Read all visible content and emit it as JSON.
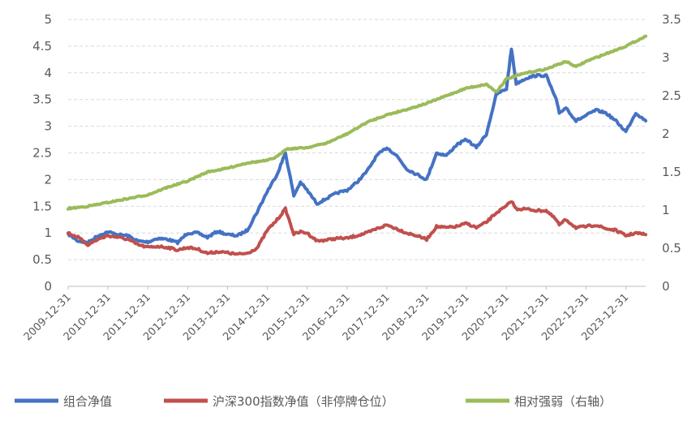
{
  "chart_data": {
    "type": "line",
    "x": [
      "2009-12-31",
      "2010-12-31",
      "2011-12-31",
      "2012-12-31",
      "2013-12-31",
      "2014-12-31",
      "2015-12-31",
      "2016-12-31",
      "2017-12-31",
      "2018-12-31",
      "2019-12-31",
      "2020-12-31",
      "2021-12-31",
      "2022-12-31",
      "2023-12-31"
    ],
    "xlim": [
      "2009-12-31",
      "2024-06-30"
    ],
    "ylim_left": [
      0,
      5
    ],
    "ylim_right": [
      0,
      3.5
    ],
    "yticks_left": [
      "0",
      "0.5",
      "1",
      "1.5",
      "2",
      "2.5",
      "3",
      "3.5",
      "4",
      "4.5",
      "5"
    ],
    "yticks_right": [
      "0",
      "0.5",
      "1",
      "1.5",
      "2",
      "2.5",
      "3",
      "3.5"
    ],
    "grid": "horizontal-dashed",
    "legend_position": "bottom",
    "series": [
      {
        "name": "组合净值",
        "axis": "left",
        "color": "#4472C4",
        "points": [
          [
            "2009-12-31",
            0.98
          ],
          [
            "2010-03-31",
            0.85
          ],
          [
            "2010-06-30",
            0.82
          ],
          [
            "2010-09-30",
            0.95
          ],
          [
            "2010-12-31",
            1.02
          ],
          [
            "2011-03-31",
            0.97
          ],
          [
            "2011-06-30",
            0.95
          ],
          [
            "2011-09-30",
            0.85
          ],
          [
            "2011-12-31",
            0.83
          ],
          [
            "2012-03-31",
            0.9
          ],
          [
            "2012-06-30",
            0.88
          ],
          [
            "2012-09-30",
            0.82
          ],
          [
            "2012-12-31",
            1.0
          ],
          [
            "2013-03-31",
            1.0
          ],
          [
            "2013-06-30",
            0.92
          ],
          [
            "2013-09-30",
            1.03
          ],
          [
            "2013-12-31",
            0.97
          ],
          [
            "2014-03-31",
            0.95
          ],
          [
            "2014-06-30",
            1.05
          ],
          [
            "2014-09-30",
            1.4
          ],
          [
            "2014-12-31",
            1.78
          ],
          [
            "2015-03-31",
            2.1
          ],
          [
            "2015-06-15",
            2.5
          ],
          [
            "2015-08-31",
            1.7
          ],
          [
            "2015-10-31",
            1.95
          ],
          [
            "2015-12-31",
            1.8
          ],
          [
            "2016-03-31",
            1.55
          ],
          [
            "2016-06-30",
            1.65
          ],
          [
            "2016-09-30",
            1.75
          ],
          [
            "2016-12-31",
            1.8
          ],
          [
            "2017-03-31",
            1.95
          ],
          [
            "2017-06-30",
            2.15
          ],
          [
            "2017-09-30",
            2.45
          ],
          [
            "2017-12-31",
            2.6
          ],
          [
            "2018-03-31",
            2.45
          ],
          [
            "2018-06-30",
            2.2
          ],
          [
            "2018-09-30",
            2.1
          ],
          [
            "2018-12-31",
            2.0
          ],
          [
            "2019-03-31",
            2.5
          ],
          [
            "2019-06-30",
            2.45
          ],
          [
            "2019-09-30",
            2.65
          ],
          [
            "2019-12-31",
            2.75
          ],
          [
            "2020-03-31",
            2.6
          ],
          [
            "2020-06-30",
            2.85
          ],
          [
            "2020-09-30",
            3.6
          ],
          [
            "2020-12-31",
            3.7
          ],
          [
            "2021-02-15",
            4.45
          ],
          [
            "2021-03-31",
            3.8
          ],
          [
            "2021-06-30",
            3.9
          ],
          [
            "2021-09-30",
            3.95
          ],
          [
            "2021-12-31",
            3.95
          ],
          [
            "2022-03-31",
            3.5
          ],
          [
            "2022-04-30",
            3.25
          ],
          [
            "2022-06-30",
            3.35
          ],
          [
            "2022-09-30",
            3.1
          ],
          [
            "2022-12-31",
            3.2
          ],
          [
            "2023-03-31",
            3.3
          ],
          [
            "2023-06-30",
            3.25
          ],
          [
            "2023-09-30",
            3.1
          ],
          [
            "2023-12-31",
            2.9
          ],
          [
            "2024-03-31",
            3.25
          ],
          [
            "2024-06-30",
            3.1
          ]
        ]
      },
      {
        "name": "沪深300指数净值（非停牌仓位）",
        "axis": "left",
        "color": "#C0504D",
        "points": [
          [
            "2009-12-31",
            1.0
          ],
          [
            "2010-03-31",
            0.92
          ],
          [
            "2010-06-30",
            0.78
          ],
          [
            "2010-09-30",
            0.88
          ],
          [
            "2010-12-31",
            0.95
          ],
          [
            "2011-03-31",
            0.92
          ],
          [
            "2011-06-30",
            0.88
          ],
          [
            "2011-09-30",
            0.78
          ],
          [
            "2011-12-31",
            0.73
          ],
          [
            "2012-03-31",
            0.75
          ],
          [
            "2012-06-30",
            0.73
          ],
          [
            "2012-09-30",
            0.68
          ],
          [
            "2012-12-31",
            0.73
          ],
          [
            "2013-03-31",
            0.7
          ],
          [
            "2013-06-30",
            0.62
          ],
          [
            "2013-09-30",
            0.65
          ],
          [
            "2013-12-31",
            0.63
          ],
          [
            "2014-03-31",
            0.6
          ],
          [
            "2014-06-30",
            0.62
          ],
          [
            "2014-09-30",
            0.72
          ],
          [
            "2014-12-31",
            1.05
          ],
          [
            "2015-03-31",
            1.25
          ],
          [
            "2015-06-15",
            1.45
          ],
          [
            "2015-08-31",
            0.98
          ],
          [
            "2015-10-31",
            1.02
          ],
          [
            "2015-12-31",
            1.0
          ],
          [
            "2016-03-31",
            0.85
          ],
          [
            "2016-06-30",
            0.87
          ],
          [
            "2016-09-30",
            0.9
          ],
          [
            "2016-12-31",
            0.9
          ],
          [
            "2017-03-31",
            0.95
          ],
          [
            "2017-06-30",
            1.0
          ],
          [
            "2017-09-30",
            1.08
          ],
          [
            "2017-12-31",
            1.15
          ],
          [
            "2018-03-31",
            1.08
          ],
          [
            "2018-06-30",
            1.0
          ],
          [
            "2018-09-30",
            0.95
          ],
          [
            "2018-12-31",
            0.88
          ],
          [
            "2019-03-31",
            1.12
          ],
          [
            "2019-06-30",
            1.1
          ],
          [
            "2019-09-30",
            1.12
          ],
          [
            "2019-12-31",
            1.18
          ],
          [
            "2020-03-31",
            1.1
          ],
          [
            "2020-06-30",
            1.2
          ],
          [
            "2020-09-30",
            1.38
          ],
          [
            "2020-12-31",
            1.5
          ],
          [
            "2021-02-15",
            1.6
          ],
          [
            "2021-03-31",
            1.45
          ],
          [
            "2021-06-30",
            1.45
          ],
          [
            "2021-09-30",
            1.42
          ],
          [
            "2021-12-31",
            1.42
          ],
          [
            "2022-03-31",
            1.25
          ],
          [
            "2022-04-30",
            1.15
          ],
          [
            "2022-06-30",
            1.25
          ],
          [
            "2022-09-30",
            1.1
          ],
          [
            "2022-12-31",
            1.12
          ],
          [
            "2023-03-31",
            1.15
          ],
          [
            "2023-06-30",
            1.08
          ],
          [
            "2023-09-30",
            1.05
          ],
          [
            "2023-12-31",
            0.95
          ],
          [
            "2024-03-31",
            1.0
          ],
          [
            "2024-06-30",
            0.97
          ]
        ]
      },
      {
        "name": "相对强弱（右轴）",
        "axis": "right",
        "color": "#9BBB59",
        "points": [
          [
            "2009-12-31",
            1.02
          ],
          [
            "2010-06-30",
            1.05
          ],
          [
            "2010-12-31",
            1.1
          ],
          [
            "2011-06-30",
            1.15
          ],
          [
            "2011-12-31",
            1.2
          ],
          [
            "2012-06-30",
            1.3
          ],
          [
            "2012-12-31",
            1.38
          ],
          [
            "2013-06-30",
            1.5
          ],
          [
            "2013-12-31",
            1.55
          ],
          [
            "2014-06-30",
            1.62
          ],
          [
            "2014-12-31",
            1.65
          ],
          [
            "2015-03-31",
            1.7
          ],
          [
            "2015-06-15",
            1.8
          ],
          [
            "2015-12-31",
            1.82
          ],
          [
            "2016-06-30",
            1.88
          ],
          [
            "2016-12-31",
            2.0
          ],
          [
            "2017-06-30",
            2.15
          ],
          [
            "2017-12-31",
            2.25
          ],
          [
            "2018-06-30",
            2.32
          ],
          [
            "2018-12-31",
            2.4
          ],
          [
            "2019-06-30",
            2.5
          ],
          [
            "2019-12-31",
            2.6
          ],
          [
            "2020-06-30",
            2.65
          ],
          [
            "2020-09-30",
            2.55
          ],
          [
            "2020-12-31",
            2.72
          ],
          [
            "2021-06-30",
            2.8
          ],
          [
            "2021-12-31",
            2.85
          ],
          [
            "2022-06-30",
            2.95
          ],
          [
            "2022-09-30",
            2.88
          ],
          [
            "2022-12-31",
            2.95
          ],
          [
            "2023-06-30",
            3.05
          ],
          [
            "2023-12-31",
            3.15
          ],
          [
            "2024-06-30",
            3.28
          ]
        ]
      }
    ]
  }
}
